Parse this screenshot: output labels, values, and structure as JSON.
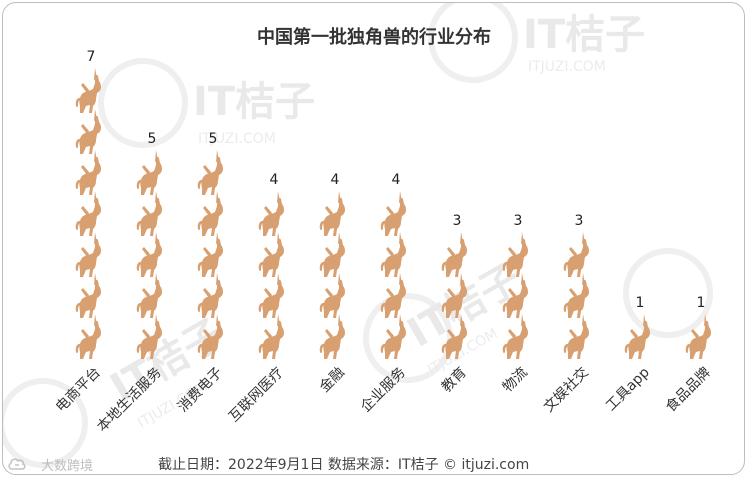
{
  "chart_data": {
    "type": "bar",
    "title": "中国第一批独角兽的行业分布",
    "categories": [
      "电商平台",
      "本地生活服务",
      "消费电子",
      "互联网医疗",
      "金融",
      "企业服务",
      "教育",
      "物流",
      "文娱社交",
      "工具app",
      "食品品牌"
    ],
    "values": [
      7,
      5,
      5,
      4,
      4,
      4,
      3,
      3,
      3,
      1,
      1
    ],
    "ylim": [
      0,
      7
    ],
    "mark": "unicorn-icon",
    "mark_color": "#d8a070",
    "grid": false
  },
  "footer": "截止日期：2022年9月1日    数据来源：IT桔子 © itjuzi.com",
  "watermark": {
    "brand": "IT桔子",
    "site": "ITJUZI.COM"
  },
  "logo": {
    "text": "大数跨境",
    "icon": "cloud-logo-icon"
  }
}
